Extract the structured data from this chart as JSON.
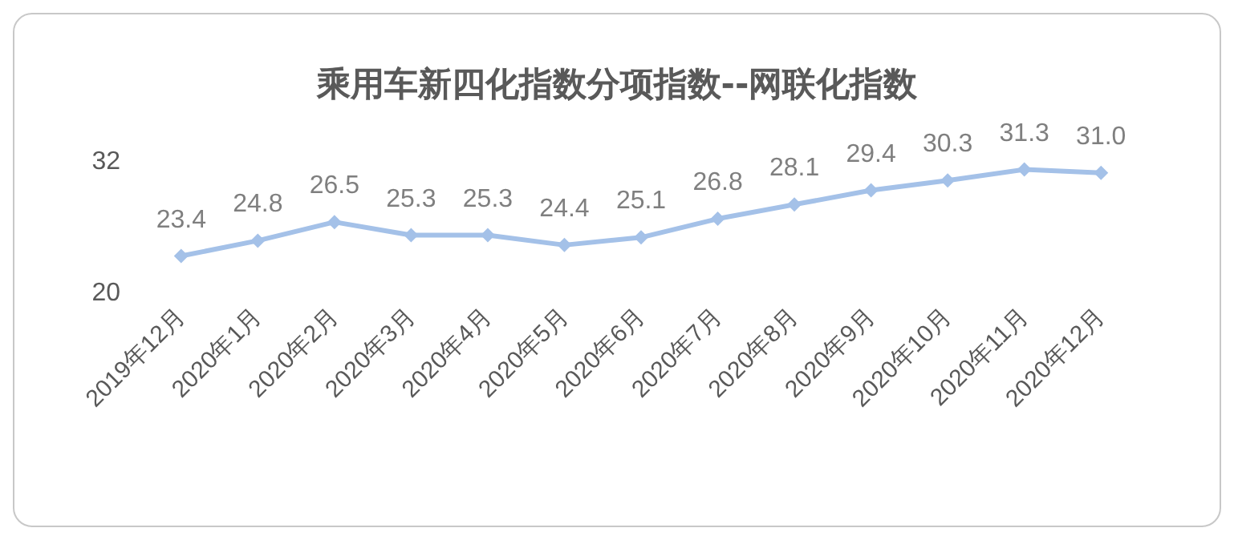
{
  "chart_data": {
    "type": "line",
    "title": "乘用车新四化指数分项指数--网联化指数",
    "categories": [
      "2019年12月",
      "2020年1月",
      "2020年2月",
      "2020年3月",
      "2020年4月",
      "2020年5月",
      "2020年6月",
      "2020年7月",
      "2020年8月",
      "2020年9月",
      "2020年10月",
      "2020年11月",
      "2020年12月"
    ],
    "series": [
      {
        "color": "#a4c1e8",
        "values": [
          23.4,
          24.8,
          26.5,
          25.3,
          25.3,
          24.4,
          25.1,
          26.8,
          28.1,
          29.4,
          30.3,
          31.3,
          31.0
        ],
        "value_labels": [
          "23.4",
          "24.8",
          "26.5",
          "25.3",
          "25.3",
          "24.4",
          "25.1",
          "26.8",
          "28.1",
          "29.4",
          "30.3",
          "31.3",
          "31.0"
        ]
      }
    ],
    "ylim": [
      20,
      32
    ],
    "yticks": [
      20,
      32
    ],
    "grid": false,
    "marker": "diamond",
    "line_style": "solid"
  }
}
